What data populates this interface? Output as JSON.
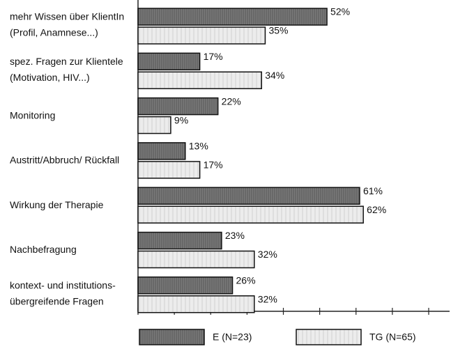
{
  "chart_data": {
    "type": "bar",
    "orientation": "horizontal",
    "categories": [
      [
        "mehr Wissen über KlientIn",
        "(Profil, Anamnese...)"
      ],
      [
        "spez. Fragen zur Klientele",
        "(Motivation, HIV...)"
      ],
      [
        "Monitoring"
      ],
      [
        "Austritt/Abbruch/ Rückfall"
      ],
      [
        "Wirkung der Therapie"
      ],
      [
        "Nachbefragung"
      ],
      [
        "kontext- und institutions-",
        "übergreifende Fragen"
      ]
    ],
    "series": [
      {
        "name": "E (N=23)",
        "color": "#7a7a7a",
        "values": [
          52,
          17,
          22,
          13,
          61,
          23,
          26
        ],
        "value_labels": [
          "52%",
          "17%",
          "22%",
          "13%",
          "61%",
          "23%",
          "26%"
        ]
      },
      {
        "name": "TG (N=65)",
        "color": "#e6e6e6",
        "values": [
          35,
          34,
          9,
          17,
          62,
          32,
          32
        ],
        "value_labels": [
          "35%",
          "34%",
          "9%",
          "17%",
          "62%",
          "32%",
          "32%"
        ]
      }
    ],
    "xlim": [
      0,
      80
    ],
    "xticks": [
      0,
      10,
      20,
      30,
      40,
      50,
      60,
      70,
      80
    ],
    "legend": "bottom"
  }
}
